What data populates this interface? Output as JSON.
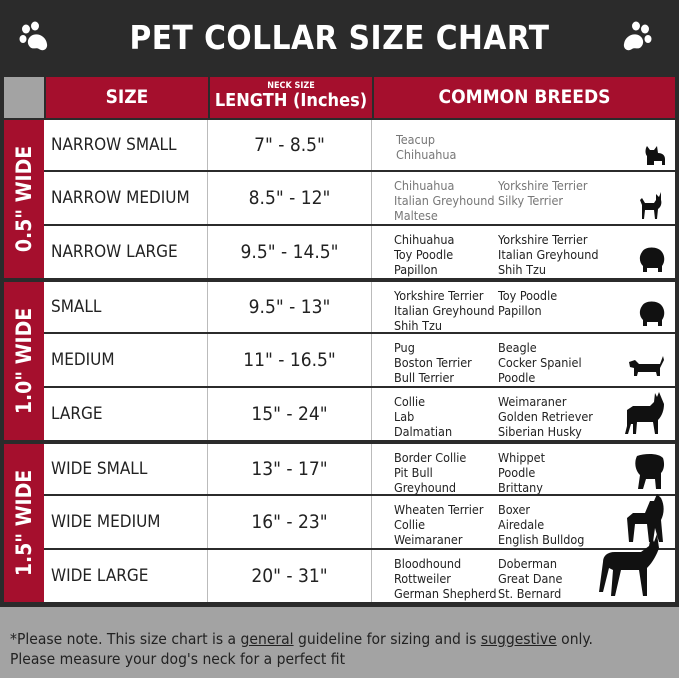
{
  "title": "PET COLLAR SIZE CHART",
  "header": {
    "size": "SIZE",
    "length_small": "NECK SIZE",
    "length": "LENGTH (Inches)",
    "breeds": "COMMON BREEDS"
  },
  "colors": {
    "dark": "#2b2b2b",
    "red": "#a50f2d",
    "gray": "#a3a3a3"
  },
  "groups": [
    {
      "label": "0.5\" WIDE",
      "rows": [
        {
          "size": "NARROW SMALL",
          "length": "7\" - 8.5\"",
          "breeds_left": [
            "Teacup",
            "Chihuahua"
          ],
          "breeds_right": [],
          "light": true,
          "icon": "yorkie-silhouette-icon"
        },
        {
          "size": "NARROW MEDIUM",
          "length": "8.5\" - 12\"",
          "breeds_left": [
            "Chihuahua",
            "Italian Greyhound",
            "Maltese"
          ],
          "breeds_right": [
            "Yorkshire Terrier",
            "Silky Terrier"
          ],
          "light": true,
          "icon": "chihuahua-silhouette-icon"
        },
        {
          "size": "NARROW LARGE",
          "length": "9.5\" - 14.5\"",
          "breeds_left": [
            "Chihuahua",
            "Toy Poodle",
            "Papillon"
          ],
          "breeds_right": [
            "Yorkshire Terrier",
            "Italian Greyhound",
            "Shih Tzu"
          ],
          "light": false,
          "icon": "fluffy-dog-silhouette-icon"
        }
      ]
    },
    {
      "label": "1.0\" WIDE",
      "rows": [
        {
          "size": "SMALL",
          "length": "9.5\" - 13\"",
          "breeds_left": [
            "Yorkshire Terrier",
            "Italian Greyhound",
            "Shih Tzu"
          ],
          "breeds_right": [
            "Toy Poodle",
            "Papillon"
          ],
          "light": false,
          "icon": "fluffy-dog-silhouette-icon"
        },
        {
          "size": "MEDIUM",
          "length": "11\" - 16.5\"",
          "breeds_left": [
            "Pug",
            "Boston Terrier",
            "Bull Terrier"
          ],
          "breeds_right": [
            "Beagle",
            "Cocker Spaniel",
            "Poodle"
          ],
          "light": false,
          "icon": "dachshund-silhouette-icon"
        },
        {
          "size": "LARGE",
          "length": "15\" - 24\"",
          "breeds_left": [
            "Collie",
            "Lab",
            "Dalmatian"
          ],
          "breeds_right": [
            "Weimaraner",
            "Golden Retriever",
            "Siberian Husky"
          ],
          "light": false,
          "icon": "shepherd-silhouette-icon"
        }
      ]
    },
    {
      "label": "1.5\" WIDE",
      "rows": [
        {
          "size": "WIDE SMALL",
          "length": "13\" - 17\"",
          "breeds_left": [
            "Border Collie",
            "Pit Bull",
            "Greyhound"
          ],
          "breeds_right": [
            "Whippet",
            "Poodle",
            "Brittany"
          ],
          "light": false,
          "icon": "bulldog-silhouette-icon"
        },
        {
          "size": "WIDE MEDIUM",
          "length": "16\" - 23\"",
          "breeds_left": [
            "Wheaten Terrier",
            "Collie",
            "Weimaraner"
          ],
          "breeds_right": [
            "Boxer",
            "Airedale",
            "English Bulldog"
          ],
          "light": false,
          "icon": "pitbull-silhouette-icon"
        },
        {
          "size": "WIDE LARGE",
          "length": "20\" - 31\"",
          "breeds_left": [
            "Bloodhound",
            "Rottweiler",
            "German Shepherd"
          ],
          "breeds_right": [
            "Doberman",
            "Great Dane",
            "St. Bernard"
          ],
          "light": false,
          "icon": "doberman-silhouette-icon"
        }
      ]
    }
  ],
  "footer": {
    "line1_a": "*Please note. This size chart is a ",
    "line1_u1": "general",
    "line1_b": " guideline for sizing and is ",
    "line1_u2": "suggestive",
    "line1_c": " only.",
    "line2": "Please measure your dog's neck for a perfect fit"
  }
}
